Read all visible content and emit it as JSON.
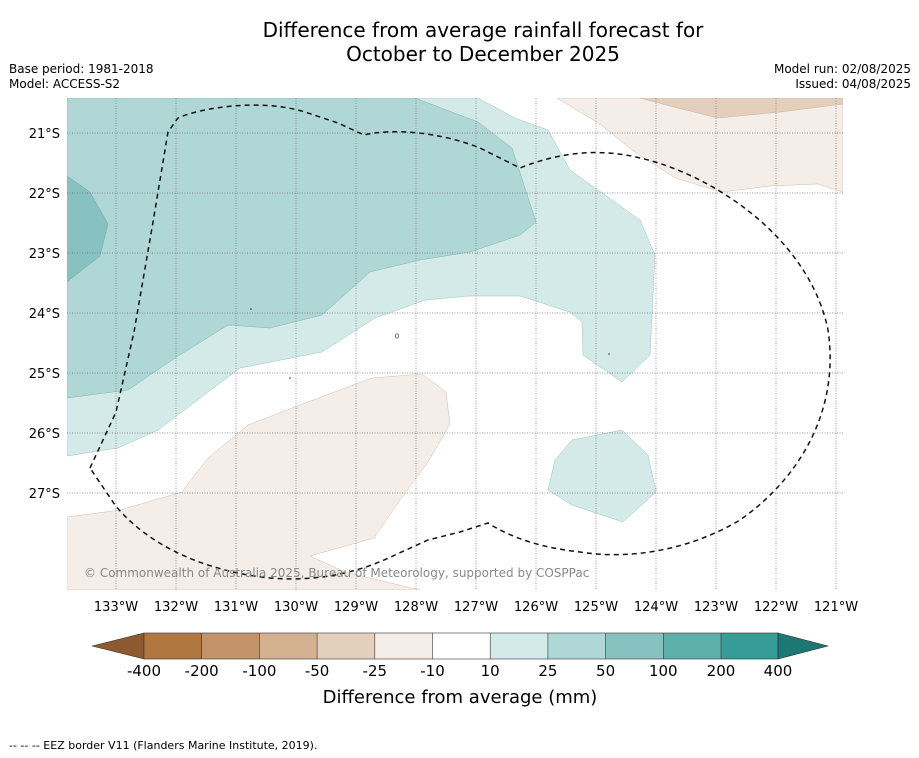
{
  "title": {
    "line1": "Difference from average rainfall forecast for",
    "line2": "October to December 2025"
  },
  "meta": {
    "base_period": "Base period: 1981-2018",
    "model": "Model: ACCESS-S2",
    "model_run": "Model run: 02/08/2025",
    "issued": "Issued: 04/08/2025"
  },
  "map": {
    "lat_labels": [
      "21°S",
      "22°S",
      "23°S",
      "24°S",
      "25°S",
      "26°S",
      "27°S"
    ],
    "lon_labels": [
      "133°W",
      "132°W",
      "131°W",
      "130°W",
      "129°W",
      "128°W",
      "127°W",
      "126°W",
      "125°W",
      "124°W",
      "123°W",
      "122°W",
      "121°W"
    ],
    "copyright": "© Commonwealth of Australia 2025, Bureau of Meteorology, supported by COSPPac",
    "eez_border": "dashed"
  },
  "legend": {
    "colors": [
      "#8c5a2e",
      "#b07840",
      "#c39468",
      "#d4b190",
      "#e3cfbb",
      "#f4ede8",
      "#ffffff",
      "#d4eae8",
      "#afd7d6",
      "#87c2c1",
      "#5eaeac",
      "#359c98",
      "#1c7872"
    ],
    "tick_labels": [
      "-400",
      "-200",
      "-100",
      "-50",
      "-25",
      "-10",
      "10",
      "25",
      "50",
      "100",
      "200",
      "400"
    ],
    "axis_label": "Difference from average (mm)"
  },
  "footnote": "--  --  -- EEZ border V11 (Flanders Marine Institute, 2019)."
}
